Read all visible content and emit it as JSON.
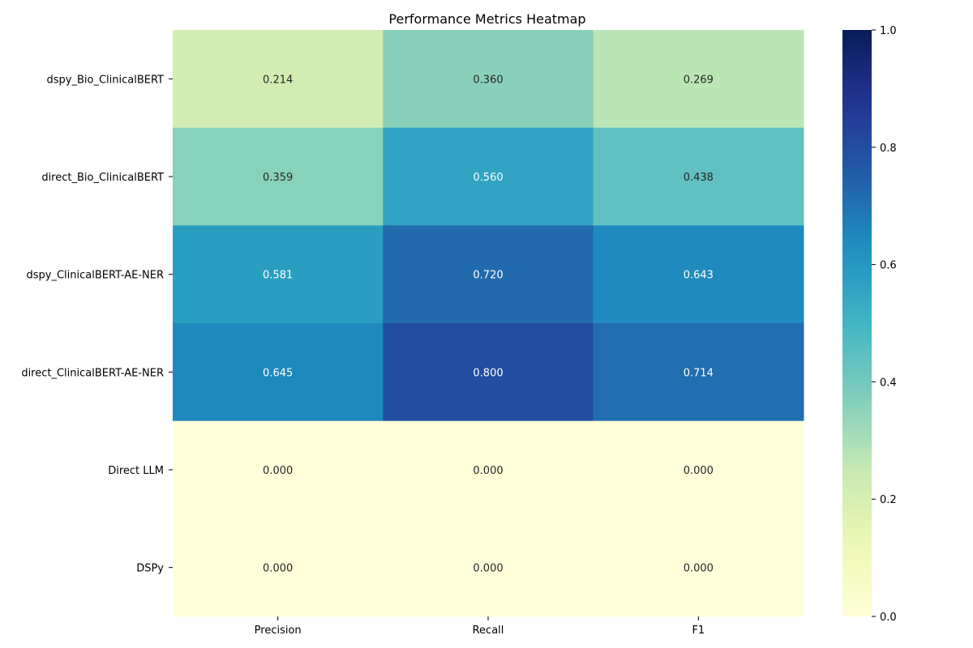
{
  "chart_data": {
    "type": "heatmap",
    "title": "Performance Metrics Heatmap",
    "columns": [
      "Precision",
      "Recall",
      "F1"
    ],
    "rows": [
      "dspy_Bio_ClinicalBERT",
      "direct_Bio_ClinicalBERT",
      "dspy_ClinicalBERT-AE-NER",
      "direct_ClinicalBERT-AE-NER",
      "Direct LLM",
      "DSPy"
    ],
    "values": [
      [
        0.214,
        0.36,
        0.269
      ],
      [
        0.359,
        0.56,
        0.438
      ],
      [
        0.581,
        0.72,
        0.643
      ],
      [
        0.645,
        0.8,
        0.714
      ],
      [
        0.0,
        0.0,
        0.0
      ],
      [
        0.0,
        0.0,
        0.0
      ]
    ],
    "cell_labels": [
      [
        "0.214",
        "0.360",
        "0.269"
      ],
      [
        "0.359",
        "0.560",
        "0.438"
      ],
      [
        "0.581",
        "0.720",
        "0.643"
      ],
      [
        "0.645",
        "0.800",
        "0.714"
      ],
      [
        "0.000",
        "0.000",
        "0.000"
      ],
      [
        "0.000",
        "0.000",
        "0.000"
      ]
    ],
    "colormap": "YlGnBu",
    "vmin": 0.0,
    "vmax": 1.0,
    "colorbar_ticks": [
      "0.0",
      "0.2",
      "0.4",
      "0.6",
      "0.8",
      "1.0"
    ],
    "grid": false
  }
}
